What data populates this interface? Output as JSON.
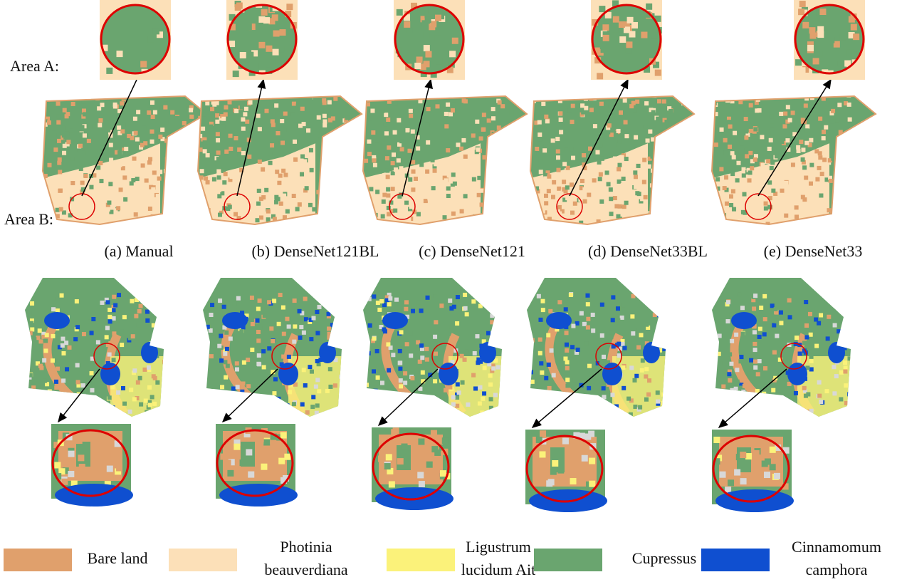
{
  "labels": {
    "area_a": "Area A:",
    "area_b": "Area B:"
  },
  "captions": [
    "(a) Manual",
    "(b) DenseNet121BL",
    "(c) DenseNet121",
    "(d) DenseNet33BL",
    "(e) DenseNet33"
  ],
  "legend": [
    {
      "lines": [
        "Bare land"
      ],
      "color": "#e0a06c"
    },
    {
      "lines": [
        "Photinia",
        "beauverdiana"
      ],
      "color": "#fce0b8"
    },
    {
      "lines": [
        "Ligustrum",
        "lucidum Ait"
      ],
      "color": "#fbf27a"
    },
    {
      "lines": [
        "Cupressus"
      ],
      "color": "#6aa56f"
    },
    {
      "lines": [
        "Cinnamomum",
        "camphora"
      ],
      "color": "#0f4fd0"
    }
  ]
}
